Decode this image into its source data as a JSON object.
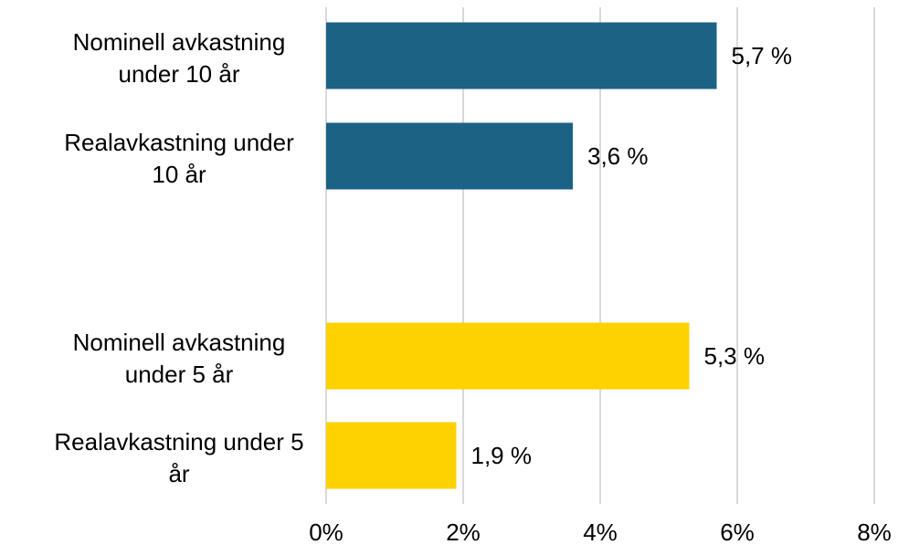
{
  "chart_data": {
    "type": "bar",
    "orientation": "horizontal",
    "categories": [
      [
        "Nominell avkastning",
        "under 10 år"
      ],
      [
        "Realavkastning under",
        "10 år"
      ],
      [
        "Nominell avkastning",
        "under 5 år"
      ],
      [
        "Realavkastning under 5",
        "år"
      ]
    ],
    "values": [
      5.7,
      3.6,
      5.3,
      1.9
    ],
    "data_labels": [
      "5,7 %",
      "3,6 %",
      "5,3 %",
      "1,9 %"
    ],
    "bar_colors": [
      "#1b6285",
      "#1b6285",
      "#fed100",
      "#fed100"
    ],
    "xlim": [
      0,
      8
    ],
    "xticks": [
      0,
      2,
      4,
      6,
      8
    ],
    "xtick_labels": [
      "0%",
      "2%",
      "4%",
      "6%",
      "8%"
    ],
    "grid": "vertical",
    "gridline_color": "#d9d9d9",
    "title": "",
    "xlabel": "",
    "ylabel": ""
  }
}
